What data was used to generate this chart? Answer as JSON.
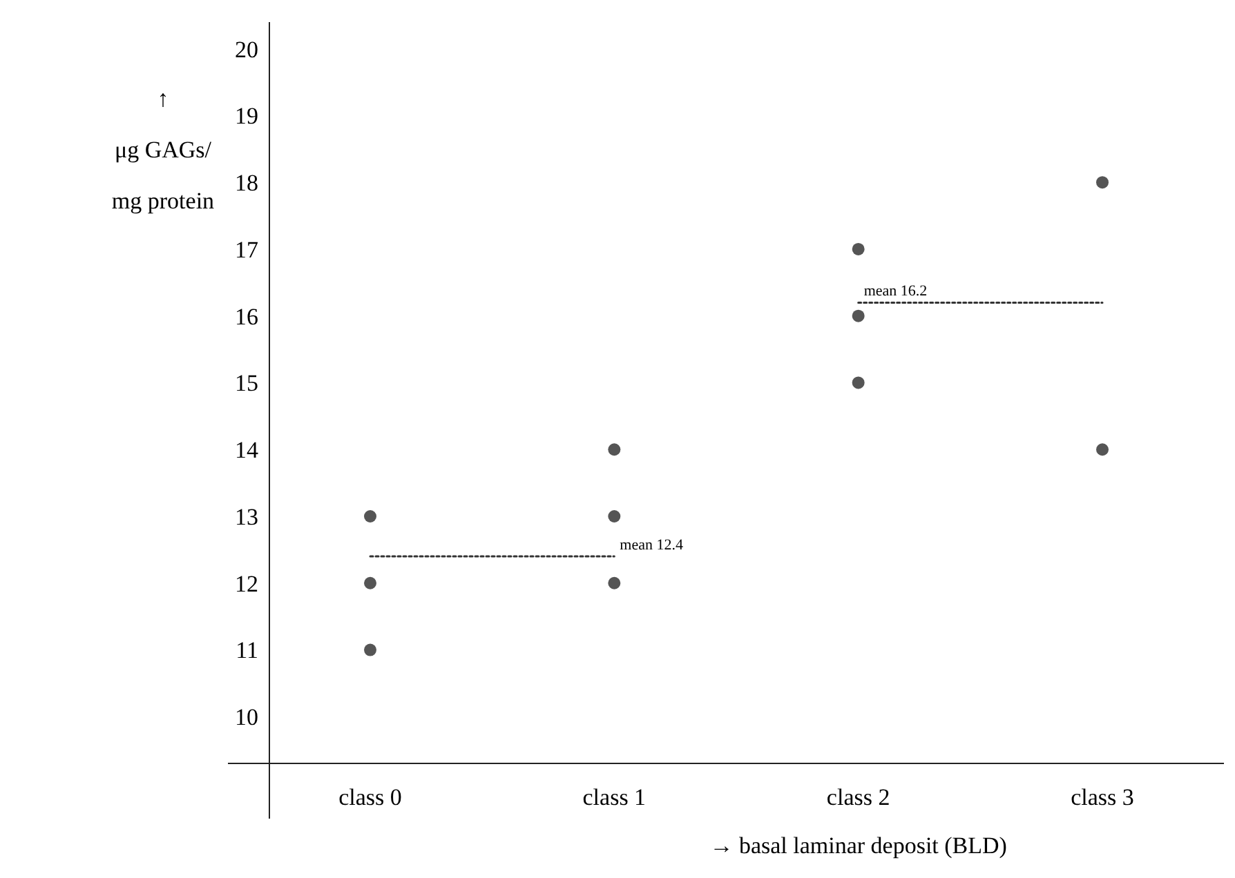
{
  "chart_data": {
    "type": "scatter",
    "xlabel": "→ basal laminar deposit (BLD)",
    "ylabel": "↑\nμg GAGs/\nmg protein",
    "categories": [
      "class 0",
      "class 1",
      "class 2",
      "class 3"
    ],
    "ylim": [
      9.3,
      20.4
    ],
    "yticks": [
      10,
      11,
      12,
      13,
      14,
      15,
      16,
      17,
      18,
      19,
      20
    ],
    "grid": false,
    "series": [
      {
        "color": "#555555",
        "marker": "circle",
        "x": [
          "class 0",
          "class 0",
          "class 0",
          "class 1",
          "class 1",
          "class 1",
          "class 2",
          "class 2",
          "class 2",
          "class 3",
          "class 3"
        ],
        "values": [
          13,
          12,
          11,
          14,
          13,
          12,
          17,
          16,
          15,
          18,
          14
        ]
      },
      {
        "type": "line",
        "color": "#333333",
        "line_style": "dotted",
        "marker": "none",
        "x": [
          "class 0",
          "class 1"
        ],
        "values": [
          12.4,
          12.4
        ]
      },
      {
        "type": "line",
        "color": "#333333",
        "line_style": "dotted",
        "marker": "none",
        "x": [
          "class 2",
          "class 3"
        ],
        "values": [
          16.2,
          16.2
        ]
      }
    ],
    "annotations": [
      {
        "text": "mean 12.4",
        "x": "class 1",
        "y": 12.4
      },
      {
        "text": "mean 16.2",
        "x": "class 2",
        "y": 16.2
      }
    ]
  }
}
